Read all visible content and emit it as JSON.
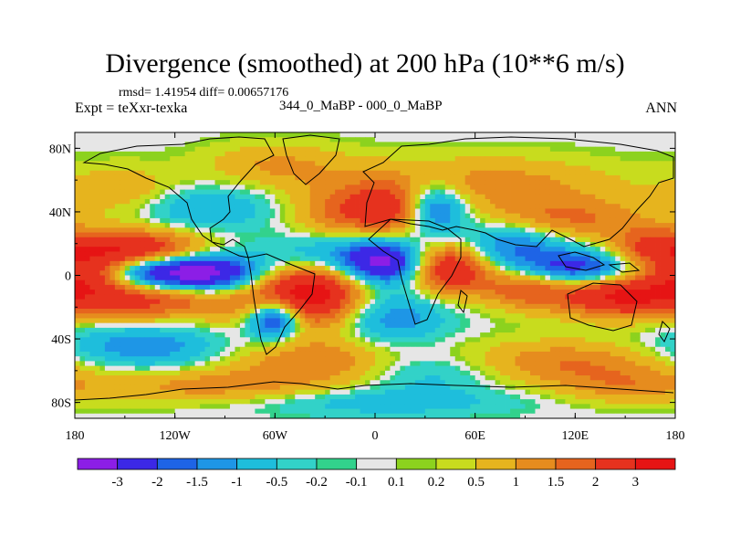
{
  "chart_data": {
    "type": "heatmap",
    "title": "Divergence (smoothed) at 200 hPa (10**6 m/s)",
    "stats": "rmsd= 1.41954 diff= 0.00657176",
    "experiment": "Expt = teXxr-texka",
    "period": "344_0_MaBP - 000_0_MaBP",
    "season": "ANN",
    "xlabel": "",
    "ylabel": "",
    "xlim": [
      -180,
      180
    ],
    "ylim": [
      -90,
      90
    ],
    "x_ticks": [
      {
        "value": -180,
        "label": "180"
      },
      {
        "value": -120,
        "label": "120W"
      },
      {
        "value": -60,
        "label": "60W"
      },
      {
        "value": 0,
        "label": "0"
      },
      {
        "value": 60,
        "label": "60E"
      },
      {
        "value": 120,
        "label": "120E"
      },
      {
        "value": 180,
        "label": "180"
      }
    ],
    "y_ticks": [
      {
        "value": 80,
        "label": "80N"
      },
      {
        "value": 40,
        "label": "40N"
      },
      {
        "value": 0,
        "label": "0"
      },
      {
        "value": -40,
        "label": "40S"
      },
      {
        "value": -80,
        "label": "80S"
      }
    ],
    "colorbar": {
      "colors": [
        "#8c1ee6",
        "#3c28e6",
        "#1e64e6",
        "#1e96e6",
        "#1ebedc",
        "#32d2c8",
        "#32d28c",
        "#e6e6e6",
        "#8cd21e",
        "#c8dc1e",
        "#e6b41e",
        "#e68c1e",
        "#e6641e",
        "#e6321e",
        "#e61414"
      ],
      "labels": [
        "-3",
        "-2",
        "-1.5",
        "-1",
        "-0.5",
        "-0.2",
        "-0.1",
        "0.1",
        "0.2",
        "0.5",
        "1",
        "1.5",
        "2",
        "3"
      ]
    },
    "blobs": [
      {
        "lon": -145,
        "lat": 14,
        "amp": 3.5,
        "rx": 30,
        "ry": 10
      },
      {
        "lon": -140,
        "lat": -14,
        "amp": 2.5,
        "rx": 38,
        "ry": 10
      },
      {
        "lon": -172,
        "lat": 0,
        "amp": 1.8,
        "rx": 16,
        "ry": 8
      },
      {
        "lon": -125,
        "lat": 2,
        "amp": -4.5,
        "rx": 28,
        "ry": 8
      },
      {
        "lon": -90,
        "lat": 0,
        "amp": -1.8,
        "rx": 22,
        "ry": 9
      },
      {
        "lon": -60,
        "lat": -27,
        "amp": -3.5,
        "rx": 12,
        "ry": 9
      },
      {
        "lon": -40,
        "lat": -12,
        "amp": 4.0,
        "rx": 28,
        "ry": 16
      },
      {
        "lon": -35,
        "lat": 12,
        "amp": -1.6,
        "rx": 28,
        "ry": 10
      },
      {
        "lon": 5,
        "lat": 8,
        "amp": -3.5,
        "rx": 18,
        "ry": 10
      },
      {
        "lon": 5,
        "lat": -25,
        "amp": -1.8,
        "rx": 25,
        "ry": 12
      },
      {
        "lon": 45,
        "lat": 5,
        "amp": 3.2,
        "rx": 18,
        "ry": 12
      },
      {
        "lon": 35,
        "lat": 42,
        "amp": -3.0,
        "rx": 14,
        "ry": 12
      },
      {
        "lon": 15,
        "lat": 40,
        "amp": 2.0,
        "rx": 20,
        "ry": 12
      },
      {
        "lon": 80,
        "lat": 20,
        "amp": -1.8,
        "rx": 25,
        "ry": 10
      },
      {
        "lon": 120,
        "lat": 4,
        "amp": -2.8,
        "rx": 30,
        "ry": 8
      },
      {
        "lon": 90,
        "lat": -6,
        "amp": 2.0,
        "rx": 18,
        "ry": 10
      },
      {
        "lon": 145,
        "lat": -12,
        "amp": 3.0,
        "rx": 28,
        "ry": 10
      },
      {
        "lon": 165,
        "lat": 16,
        "amp": 1.8,
        "rx": 18,
        "ry": 10
      },
      {
        "lon": 115,
        "lat": 35,
        "amp": 1.6,
        "rx": 35,
        "ry": 10
      },
      {
        "lon": -20,
        "lat": 40,
        "amp": 1.5,
        "rx": 25,
        "ry": 12
      },
      {
        "lon": -110,
        "lat": 42,
        "amp": -1.2,
        "rx": 40,
        "ry": 10
      },
      {
        "lon": -150,
        "lat": 50,
        "amp": 1.2,
        "rx": 25,
        "ry": 12
      },
      {
        "lon": 60,
        "lat": 58,
        "amp": 1.3,
        "rx": 60,
        "ry": 12
      },
      {
        "lon": -60,
        "lat": 70,
        "amp": 1.0,
        "rx": 30,
        "ry": 10
      },
      {
        "lon": -140,
        "lat": -45,
        "amp": -1.5,
        "rx": 35,
        "ry": 10
      },
      {
        "lon": -30,
        "lat": -55,
        "amp": 1.5,
        "rx": 40,
        "ry": 10
      },
      {
        "lon": 110,
        "lat": -55,
        "amp": 1.5,
        "rx": 50,
        "ry": 10
      },
      {
        "lon": 30,
        "lat": -60,
        "amp": -1.2,
        "rx": 35,
        "ry": 10
      },
      {
        "lon": -100,
        "lat": -70,
        "amp": 1.2,
        "rx": 50,
        "ry": 8
      },
      {
        "lon": 150,
        "lat": -70,
        "amp": 1.0,
        "rx": 30,
        "ry": 8
      },
      {
        "lon": 0,
        "lat": -80,
        "amp": -0.8,
        "rx": 60,
        "ry": 6
      }
    ]
  }
}
